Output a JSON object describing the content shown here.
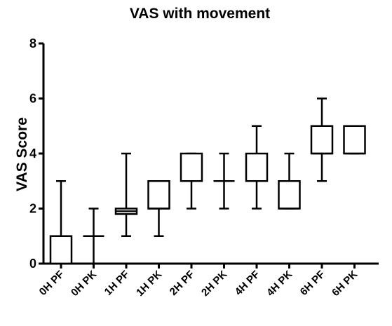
{
  "chart_data": {
    "type": "boxplot",
    "title": "VAS with movement",
    "xlabel": "",
    "ylabel": "VAS  Score",
    "ylim": [
      0,
      8
    ],
    "yticks": [
      0,
      2,
      4,
      6,
      8
    ],
    "grid": false,
    "categories": [
      "0H PF",
      "0H PK",
      "1H PF",
      "1H PK",
      "2H PF",
      "2H PK",
      "4H PF",
      "4H PK",
      "6H PF",
      "6H PK"
    ],
    "boxes": [
      {
        "min": 0,
        "q1": 0,
        "median": 0,
        "q3": 1,
        "max": 3
      },
      {
        "min": 0,
        "q1": 1,
        "median": 1,
        "q3": 1,
        "max": 2
      },
      {
        "min": 1,
        "q1": 1.8,
        "median": 1.9,
        "q3": 2,
        "max": 4
      },
      {
        "min": 1,
        "q1": 2,
        "median": 2,
        "q3": 3,
        "max": 3
      },
      {
        "min": 2,
        "q1": 3,
        "median": 3,
        "q3": 4,
        "max": 4
      },
      {
        "min": 2,
        "q1": 3,
        "median": 3,
        "q3": 3,
        "max": 4
      },
      {
        "min": 2,
        "q1": 3,
        "median": 3,
        "q3": 4,
        "max": 5
      },
      {
        "min": 2,
        "q1": 2,
        "median": 2,
        "q3": 3,
        "max": 4
      },
      {
        "min": 3,
        "q1": 4,
        "median": 4,
        "q3": 5,
        "max": 6
      },
      {
        "min": 4,
        "q1": 4,
        "median": 4,
        "q3": 5,
        "max": 5
      }
    ]
  }
}
